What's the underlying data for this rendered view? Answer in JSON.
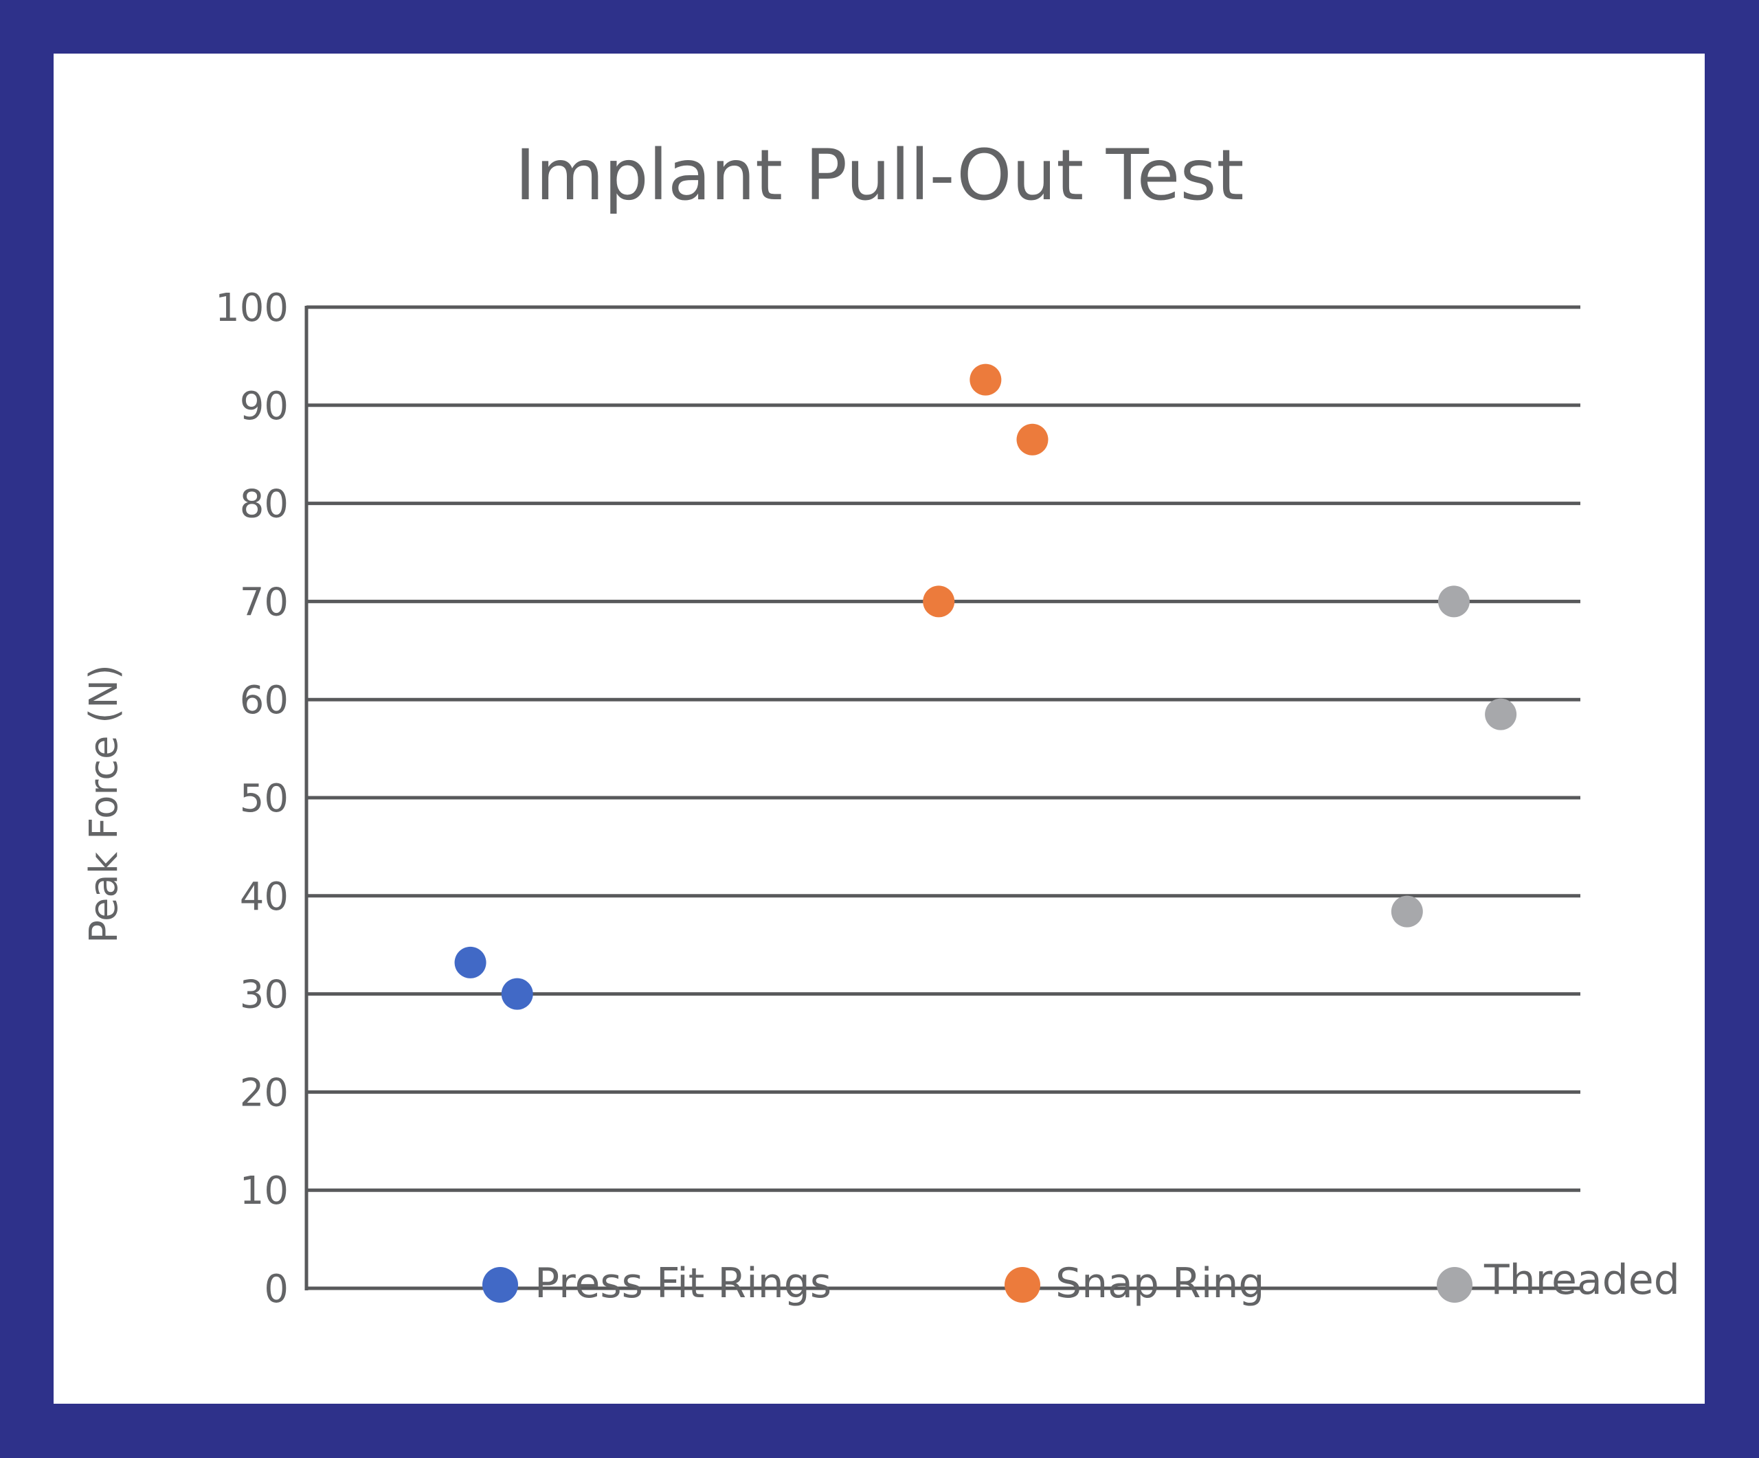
{
  "colors": {
    "border": "#2e318a",
    "background": "#ffffff",
    "gridline": "#58595b",
    "text": "#636466"
  },
  "chart_data": {
    "type": "scatter",
    "title": "Implant Pull-Out Test",
    "xlabel": "",
    "ylabel": "Peak Force (N)",
    "ylim": [
      0,
      100
    ],
    "yticks": [
      "0",
      "10",
      "20",
      "30",
      "40",
      "50",
      "60",
      "70",
      "80",
      "90",
      "100"
    ],
    "grid": true,
    "legend_position": "bottom",
    "series": [
      {
        "name": "Press Fit Rings",
        "color": "#4169c6",
        "points": [
          {
            "x": 0.85,
            "y": 33.2
          },
          {
            "x": 0.95,
            "y": 30.0
          }
        ]
      },
      {
        "name": "Snap Ring",
        "color": "#ec7b3c",
        "points": [
          {
            "x": 1.85,
            "y": 70.0
          },
          {
            "x": 1.95,
            "y": 92.6
          },
          {
            "x": 2.05,
            "y": 86.5
          }
        ]
      },
      {
        "name": "Threaded",
        "color": "#a7a8ab",
        "points": [
          {
            "x": 2.85,
            "y": 38.4
          },
          {
            "x": 2.95,
            "y": 70.0
          },
          {
            "x": 3.05,
            "y": 58.5
          }
        ]
      }
    ]
  }
}
